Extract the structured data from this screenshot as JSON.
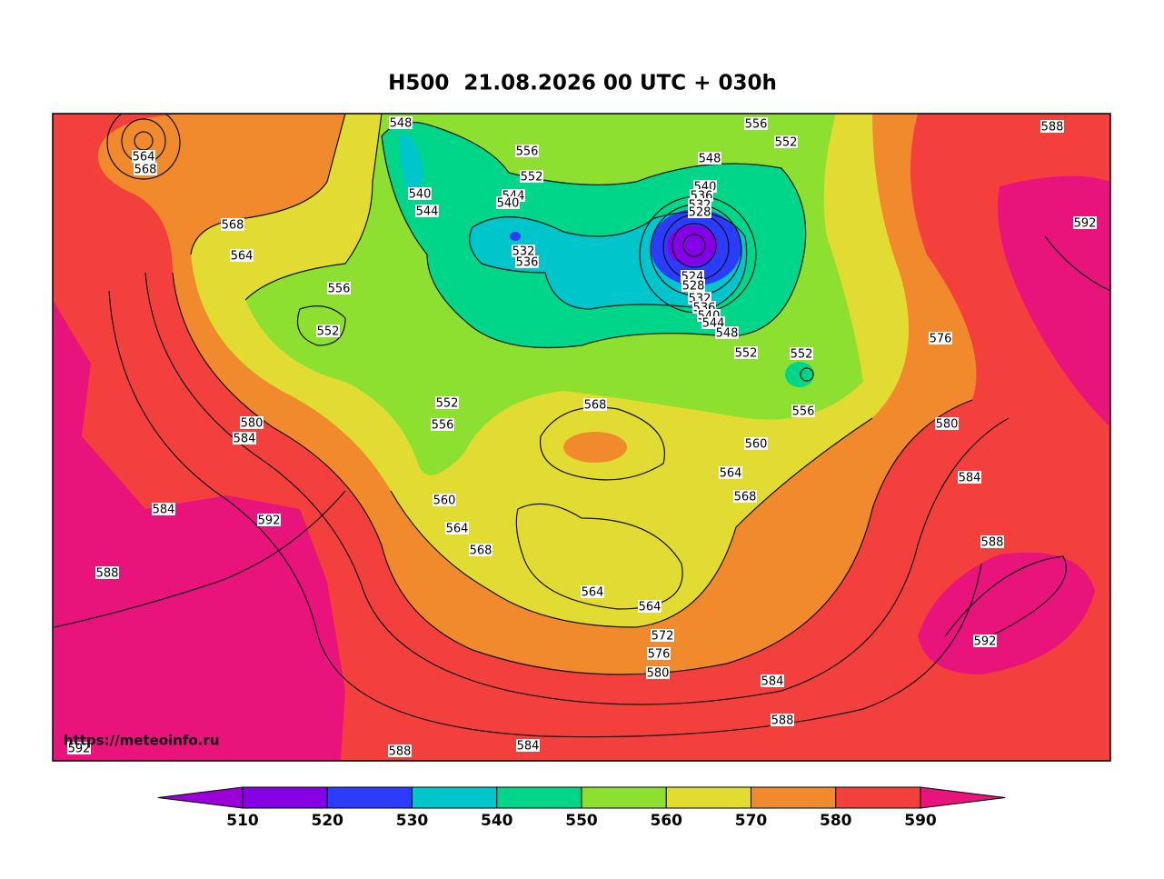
{
  "title": "H500  21.08.2026 00 UTC + 030h",
  "watermark": "https://meteoinfo.ru",
  "contour_labels": [
    548,
    564,
    568,
    556,
    552,
    544,
    540,
    540,
    544,
    568,
    564,
    532,
    536,
    556,
    552,
    556,
    552,
    548,
    540,
    536,
    532,
    528,
    524,
    528,
    532,
    536,
    540,
    544,
    548,
    552,
    552,
    556,
    560,
    564,
    568,
    568,
    552,
    556,
    580,
    584,
    584,
    592,
    588,
    560,
    564,
    568,
    564,
    564,
    572,
    576,
    580,
    584,
    588,
    584,
    588,
    592,
    588,
    592,
    576,
    580,
    584,
    588,
    592
  ],
  "colorbar": {
    "ticks": [
      510,
      520,
      530,
      540,
      550,
      560,
      570,
      580,
      590
    ],
    "colors": [
      "#9a00d8",
      "#8400e6",
      "#2a3cff",
      "#00c6cc",
      "#00d68a",
      "#8ee030",
      "#e2dc32",
      "#f08a2c",
      "#f4403c",
      "#e8147c"
    ]
  }
}
